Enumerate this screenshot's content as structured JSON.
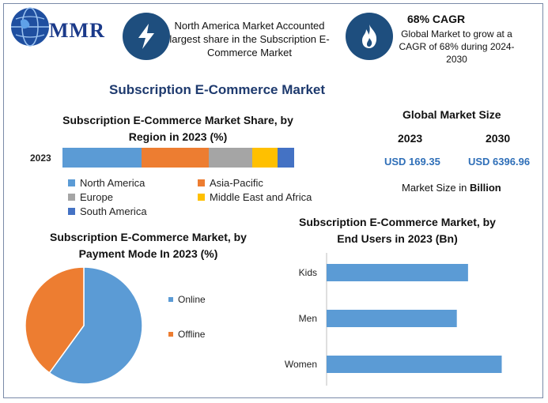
{
  "brand": {
    "logo_text": "MMR"
  },
  "info_cards": [
    {
      "icon": "lightning-icon",
      "text": "North America Market Accounted largest share in the Subscription E-Commerce Market"
    },
    {
      "icon": "flame-icon",
      "heading": "68% CAGR",
      "text": "Global Market to grow at a CAGR of 68% during 2024-2030"
    }
  ],
  "main_title": "Subscription E-Commerce Market",
  "global_market": {
    "title": "Global Market Size",
    "year_a": "2023",
    "year_b": "2030",
    "value_a": "USD 169.35",
    "value_b": "USD 6396.96",
    "unit_prefix": "Market Size in ",
    "unit_bold": "Billion"
  },
  "colors": {
    "blue": "#5b9bd5",
    "orange": "#ed7d31",
    "gray": "#a5a5a5",
    "yellow": "#ffc000",
    "darkblue": "#4472c4",
    "icon_bg": "#1e4e7e"
  },
  "chart_data": [
    {
      "type": "bar",
      "orientation": "horizontal-stacked",
      "title": "Subscription E-Commerce Market Share, by Region in 2023 (%)",
      "categories": [
        "2023"
      ],
      "series": [
        {
          "name": "North America",
          "values": [
            34
          ],
          "color": "#5b9bd5"
        },
        {
          "name": "Asia-Pacific",
          "values": [
            29
          ],
          "color": "#ed7d31"
        },
        {
          "name": "Europe",
          "values": [
            19
          ],
          "color": "#a5a5a5"
        },
        {
          "name": "Middle East and Africa",
          "values": [
            11
          ],
          "color": "#ffc000"
        },
        {
          "name": "South America",
          "values": [
            7
          ],
          "color": "#4472c4"
        }
      ],
      "legend": "bottom"
    },
    {
      "type": "pie",
      "title": "Subscription E-Commerce Market, by Payment Mode In 2023 (%)",
      "labels": [
        "Online",
        "Offline"
      ],
      "values": [
        60,
        40
      ],
      "colors": [
        "#5b9bd5",
        "#ed7d31"
      ],
      "legend": "right"
    },
    {
      "type": "bar",
      "orientation": "horizontal",
      "title": "Subscription E-Commerce Market, by End Users in 2023 (Bn)",
      "categories": [
        "Kids",
        "Men",
        "Women"
      ],
      "values": [
        63,
        58,
        78
      ],
      "color": "#5b9bd5"
    }
  ]
}
